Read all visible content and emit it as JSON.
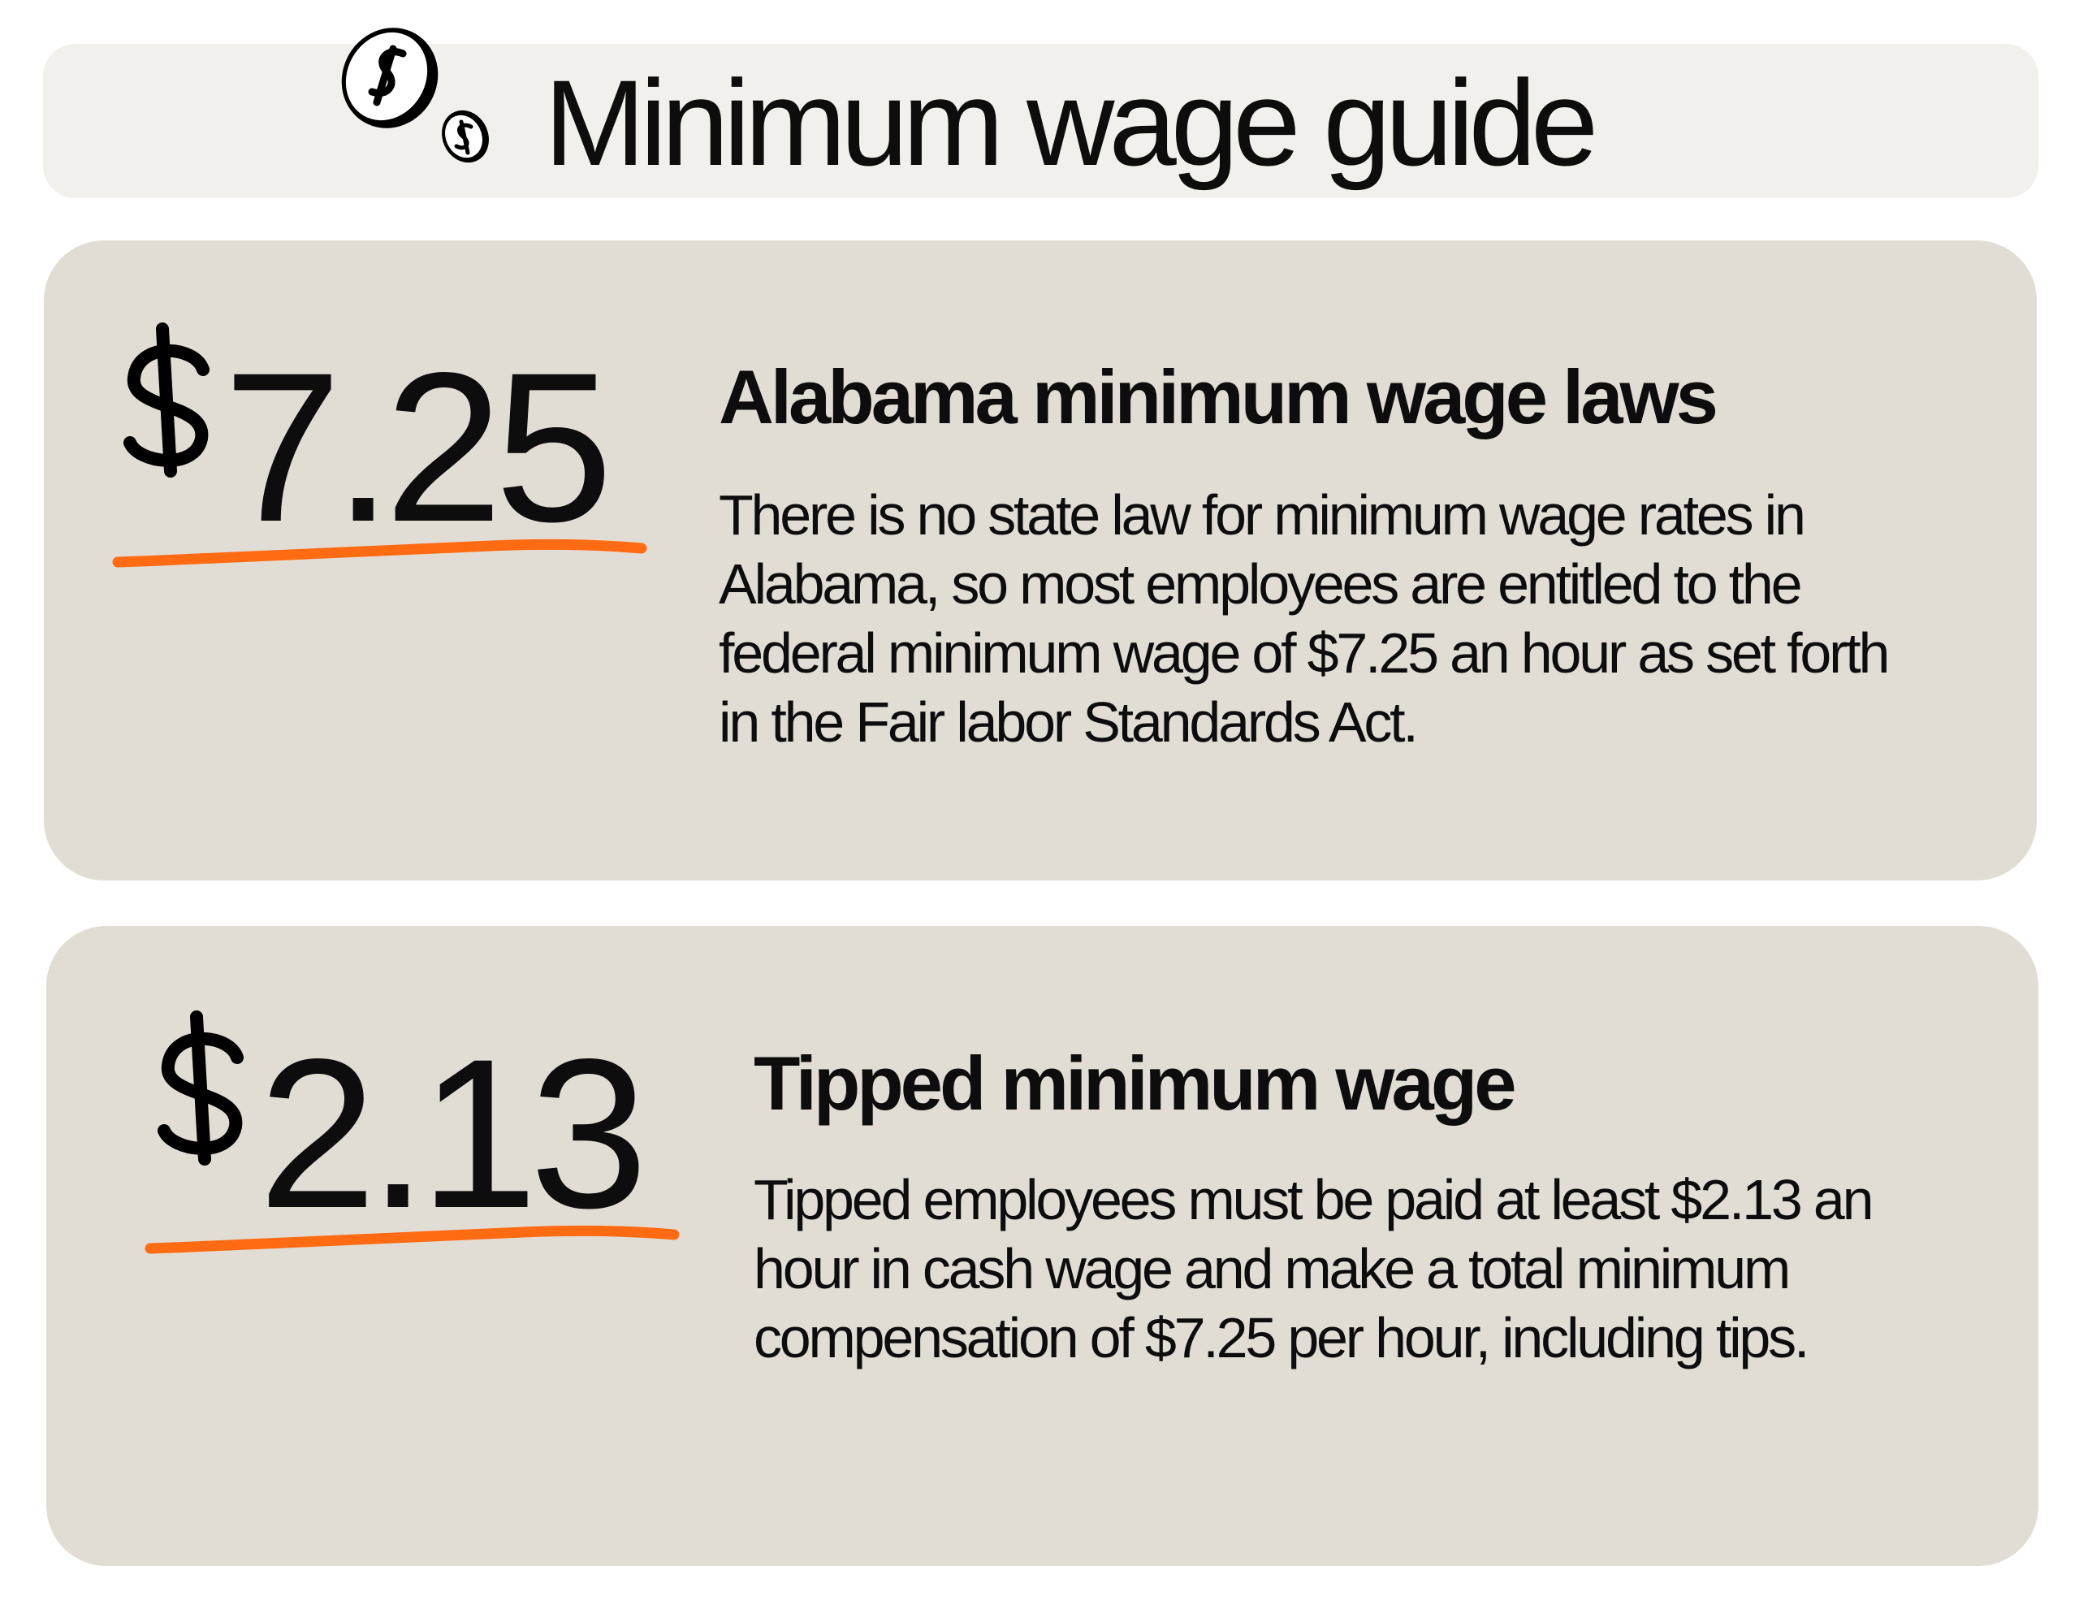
{
  "header": {
    "title": "Minimum wage guide",
    "icon": "coins-dollar-icon"
  },
  "colors": {
    "header_bg": "#F1F0EC",
    "card_bg": "#E1DDD5",
    "accent_underline": "#FF6B12",
    "text": "#0d0d0d"
  },
  "cards": [
    {
      "currency_symbol": "$",
      "amount": "7.25",
      "heading": "Alabama minimum wage laws",
      "body": "There is no state law for minimum wage rates in Alabama, so most employees are entitled to the federal minimum wage of $7.25 an hour as set forth in the Fair labor Standards Act."
    },
    {
      "currency_symbol": "$",
      "amount": "2.13",
      "heading": "Tipped minimum wage",
      "body": "Tipped employees must be paid at least $2.13 an hour in cash wage and make a total minimum compensation of $7.25 per hour, including tips."
    }
  ]
}
